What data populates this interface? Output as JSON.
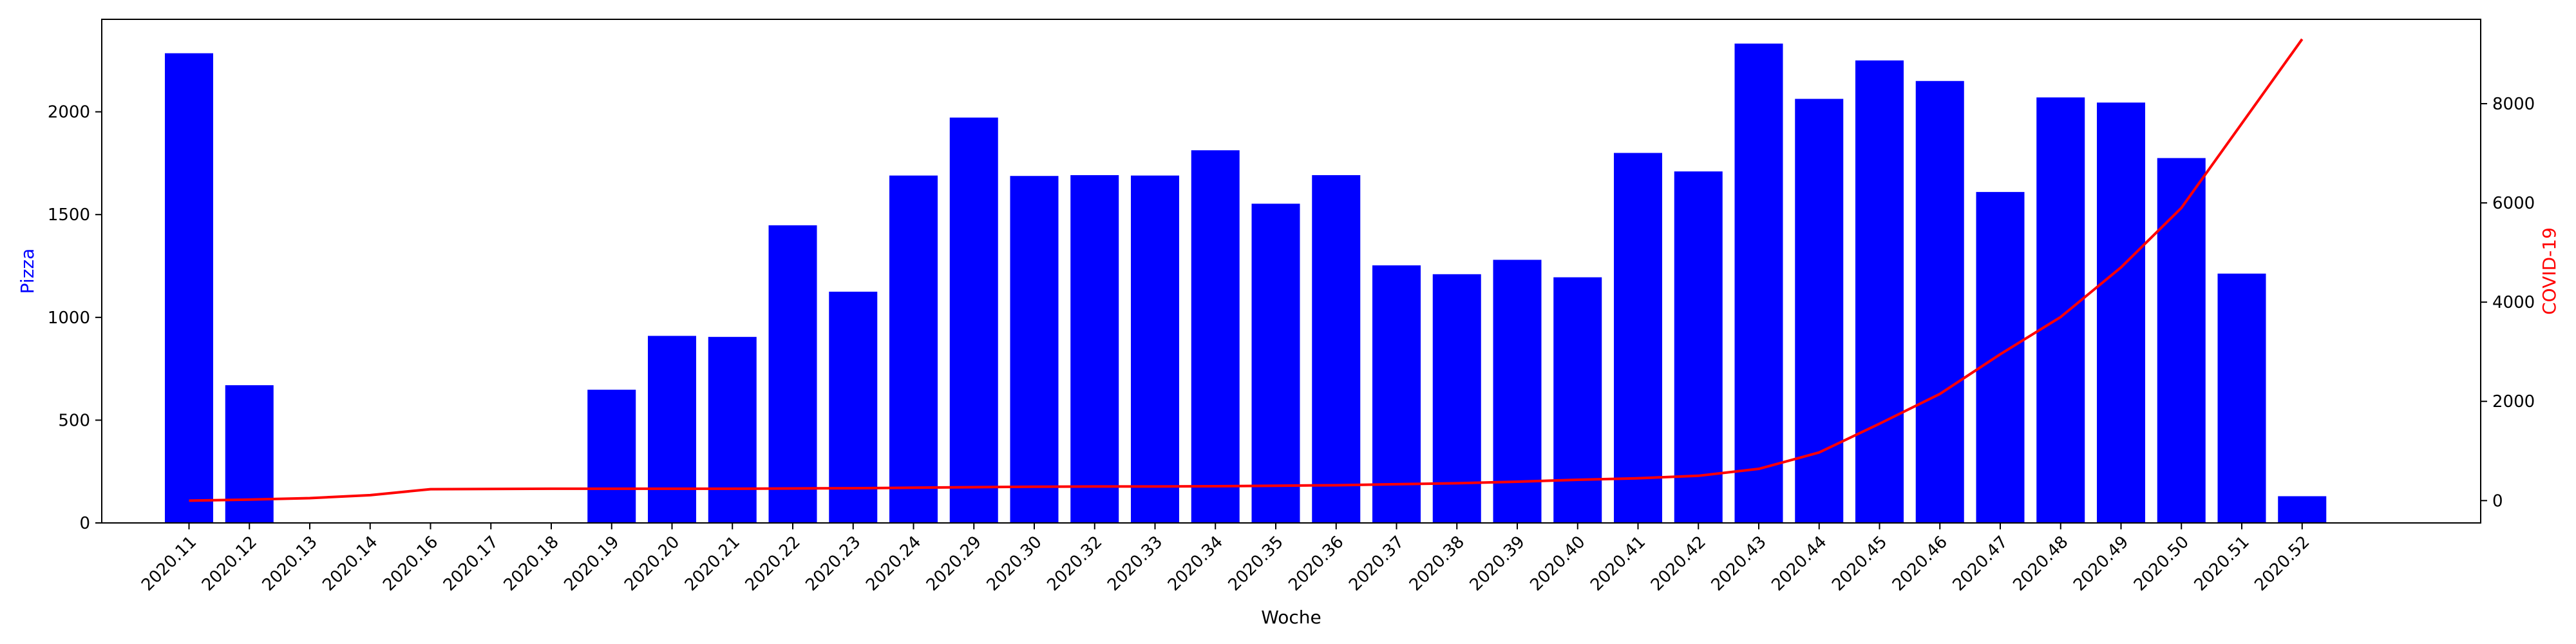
{
  "chart_data": {
    "type": "bar",
    "title": "",
    "xlabel": "Woche",
    "ylabel": "Pizza",
    "y2label": "COVID-19",
    "categories": [
      "2020.11",
      "2020.12",
      "2020.13",
      "2020.14",
      "2020.16",
      "2020.17",
      "2020.18",
      "2020.19",
      "2020.20",
      "2020.21",
      "2020.22",
      "2020.23",
      "2020.24",
      "2020.29",
      "2020.30",
      "2020.32",
      "2020.33",
      "2020.34",
      "2020.35",
      "2020.36",
      "2020.37",
      "2020.38",
      "2020.39",
      "2020.40",
      "2020.41",
      "2020.42",
      "2020.43",
      "2020.44",
      "2020.45",
      "2020.46",
      "2020.47",
      "2020.48",
      "2020.49",
      "2020.50",
      "2020.51",
      "2020.52"
    ],
    "ylim": [
      0,
      2450
    ],
    "y2lim": [
      -450,
      9700
    ],
    "yticks": [
      0,
      500,
      1000,
      1500,
      2000
    ],
    "y2ticks": [
      0,
      2000,
      4000,
      6000,
      8000
    ],
    "series": [
      {
        "name": "Pizza",
        "type": "bar",
        "axis": "left",
        "color": "#0000ff",
        "values": [
          2285,
          670,
          0,
          0,
          0,
          0,
          0,
          648,
          910,
          905,
          1448,
          1125,
          1690,
          1972,
          1688,
          1692,
          1690,
          1813,
          1553,
          1692,
          1253,
          1210,
          1280,
          1195,
          1800,
          1710,
          2332,
          2063,
          2250,
          2150,
          1610,
          2070,
          2045,
          1775,
          1213,
          130
        ]
      },
      {
        "name": "COVID-19",
        "type": "line",
        "axis": "right",
        "color": "#ff0000",
        "values": [
          0,
          20,
          50,
          110,
          230,
          235,
          240,
          240,
          240,
          240,
          245,
          250,
          260,
          270,
          280,
          285,
          285,
          290,
          300,
          310,
          330,
          350,
          380,
          420,
          450,
          500,
          640,
          970,
          1550,
          2150,
          2950,
          3700,
          4700,
          5900,
          7600,
          9300
        ]
      }
    ],
    "grid": false,
    "legend": "none"
  }
}
